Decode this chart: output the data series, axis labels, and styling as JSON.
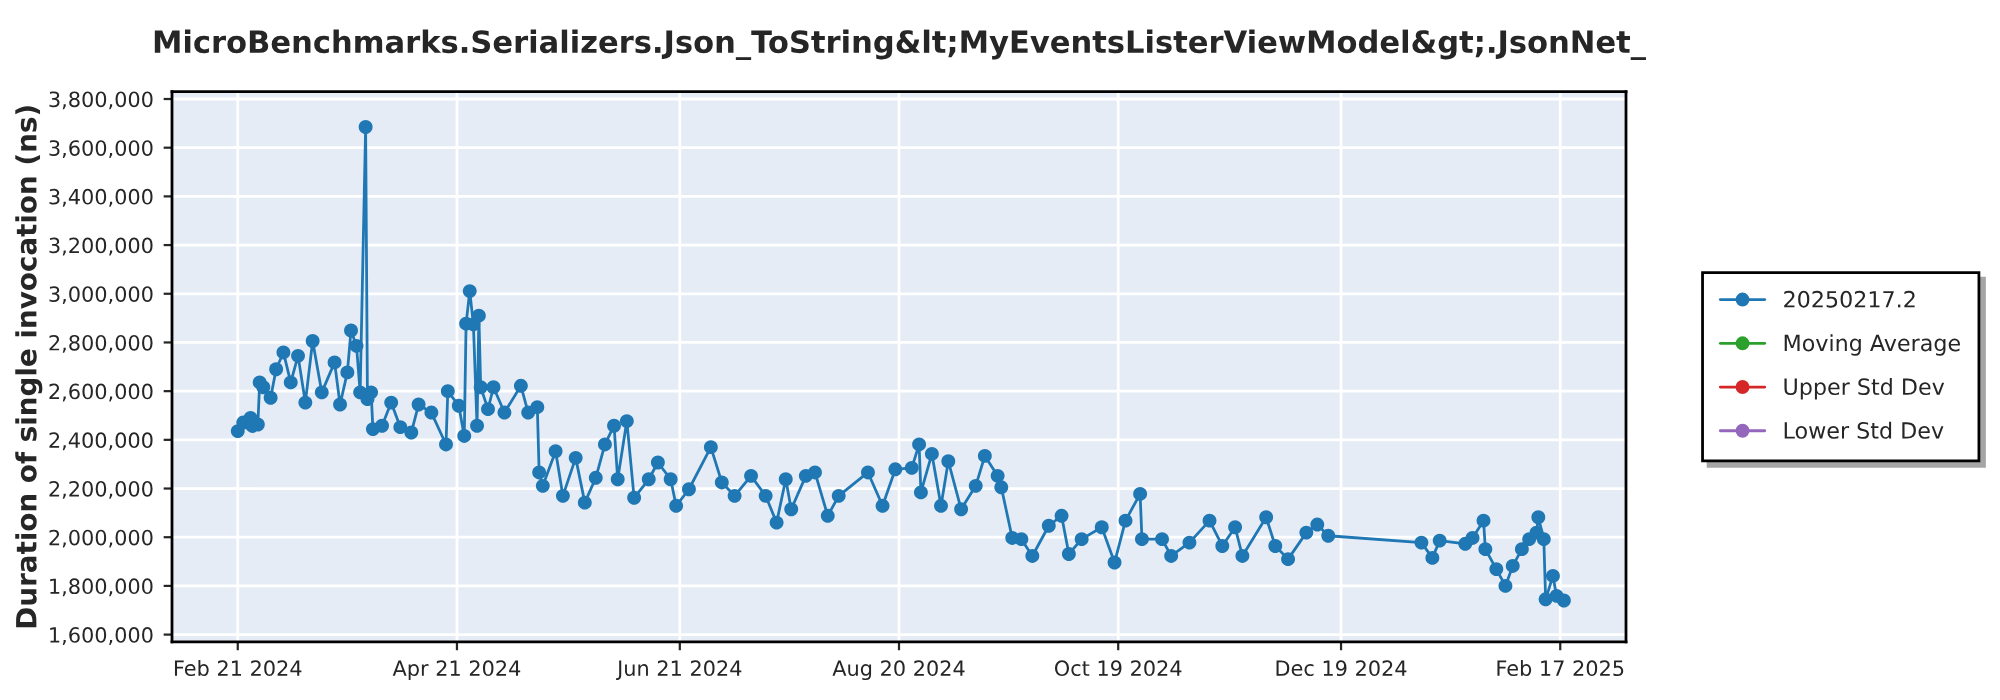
{
  "chart_data": {
    "type": "line",
    "title": "MicroBenchmarks.Serializers.Json_ToString&lt;MyEventsListerViewModel&gt;.JsonNet_",
    "ylabel": "Duration of single invocation (ns)",
    "xlim": [
      "2024-02-03",
      "2025-03-07"
    ],
    "xticks": [
      {
        "value": "2024-02-21",
        "label": "Feb 21 2024"
      },
      {
        "value": "2024-04-21",
        "label": "Apr 21 2024"
      },
      {
        "value": "2024-06-21",
        "label": "Jun 21 2024"
      },
      {
        "value": "2024-08-20",
        "label": "Aug 20 2024"
      },
      {
        "value": "2024-10-19",
        "label": "Oct 19 2024"
      },
      {
        "value": "2024-12-19",
        "label": "Dec 19 2024"
      },
      {
        "value": "2025-02-17",
        "label": "Feb 17 2025"
      }
    ],
    "ylim": [
      1570000,
      3830000
    ],
    "yticks": [
      {
        "value": 1600000,
        "label": "1,600,000"
      },
      {
        "value": 1800000,
        "label": "1,800,000"
      },
      {
        "value": 2000000,
        "label": "2,000,000"
      },
      {
        "value": 2200000,
        "label": "2,200,000"
      },
      {
        "value": 2400000,
        "label": "2,400,000"
      },
      {
        "value": 2600000,
        "label": "2,600,000"
      },
      {
        "value": 2800000,
        "label": "2,800,000"
      },
      {
        "value": 3000000,
        "label": "3,000,000"
      },
      {
        "value": 3200000,
        "label": "3,200,000"
      },
      {
        "value": 3400000,
        "label": "3,400,000"
      },
      {
        "value": 3600000,
        "label": "3,600,000"
      },
      {
        "value": 3800000,
        "label": "3,800,000"
      }
    ],
    "grid": true,
    "legend": "right",
    "marker": "circle",
    "line_style": "solid",
    "series": [
      {
        "name": "20250217.2",
        "color": "#1f77b4",
        "x": [
          "2024-02-21",
          "2024-02-22T12:00",
          "2024-02-24T12:00",
          "2024-02-25",
          "2024-02-26T12:00",
          "2024-02-27",
          "2024-02-28",
          "2024-03-01",
          "2024-03-02T12:00",
          "2024-03-04T12:00",
          "2024-03-06T12:00",
          "2024-03-08T12:00",
          "2024-03-10T12:00",
          "2024-03-12T12:00",
          "2024-03-15",
          "2024-03-18T12:00",
          "2024-03-20",
          "2024-03-22",
          "2024-03-23",
          "2024-03-24T12:00",
          "2024-03-25T12:00",
          "2024-03-27",
          "2024-03-27T12:00",
          "2024-03-28T12:00",
          "2024-03-29",
          "2024-03-31T12:00",
          "2024-04-03",
          "2024-04-05T12:00",
          "2024-04-08T12:00",
          "2024-04-10T12:00",
          "2024-04-14",
          "2024-04-18",
          "2024-04-18T12:00",
          "2024-04-21T12:00",
          "2024-04-23",
          "2024-04-23T12:00",
          "2024-04-24T12:00",
          "2024-04-25T12:00",
          "2024-04-26T12:00",
          "2024-04-27",
          "2024-04-27T12:00",
          "2024-04-29T12:00",
          "2024-05-01",
          "2024-05-04",
          "2024-05-08T12:00",
          "2024-05-10T12:00",
          "2024-05-13",
          "2024-05-13T12:00",
          "2024-05-14T12:00",
          "2024-05-18",
          "2024-05-20",
          "2024-05-23T12:00",
          "2024-05-26",
          "2024-05-29",
          "2024-05-31T12:00",
          "2024-06-03",
          "2024-06-04",
          "2024-06-06T12:00",
          "2024-06-08T12:00",
          "2024-06-12T12:00",
          "2024-06-15",
          "2024-06-18T12:00",
          "2024-06-20",
          "2024-06-23T12:00",
          "2024-06-29T12:00",
          "2024-07-02T12:00",
          "2024-07-06",
          "2024-07-10T12:00",
          "2024-07-14T12:00",
          "2024-07-17T12:00",
          "2024-07-20",
          "2024-07-21T12:00",
          "2024-07-25T12:00",
          "2024-07-28",
          "2024-07-31T12:00",
          "2024-08-03T12:00",
          "2024-08-11T12:00",
          "2024-08-15T12:00",
          "2024-08-19",
          "2024-08-23T12:00",
          "2024-08-25T12:00",
          "2024-08-26",
          "2024-08-29",
          "2024-08-31T12:00",
          "2024-09-02T12:00",
          "2024-09-06",
          "2024-09-10",
          "2024-09-12T12:00",
          "2024-09-16",
          "2024-09-17",
          "2024-09-20",
          "2024-09-22T12:00",
          "2024-09-25T12:00",
          "2024-09-30",
          "2024-10-03T12:00",
          "2024-10-05T12:00",
          "2024-10-09",
          "2024-10-14T12:00",
          "2024-10-18",
          "2024-10-21",
          "2024-10-25",
          "2024-10-25T12:00",
          "2024-10-31",
          "2024-11-02T12:00",
          "2024-11-07T12:00",
          "2024-11-13",
          "2024-11-16T12:00",
          "2024-11-20",
          "2024-11-22",
          "2024-11-28T12:00",
          "2024-12-01",
          "2024-12-04T12:00",
          "2024-12-09T12:00",
          "2024-12-12T12:00",
          "2024-12-15T12:00",
          "2025-01-10",
          "2025-01-13",
          "2025-01-15",
          "2025-01-22",
          "2025-01-24",
          "2025-01-27",
          "2025-01-27T12:00",
          "2025-01-30T12:00",
          "2025-02-02",
          "2025-02-04",
          "2025-02-06T12:00",
          "2025-02-08T12:00",
          "2025-02-10T12:00",
          "2025-02-11",
          "2025-02-12T12:00",
          "2025-02-13",
          "2025-02-15",
          "2025-02-16",
          "2025-02-18"
        ],
        "values": [
          2436000,
          2471000,
          2490000,
          2457000,
          2463000,
          2636000,
          2616000,
          2573000,
          2690000,
          2759000,
          2636000,
          2745000,
          2553000,
          2806000,
          2595000,
          2718000,
          2545000,
          2677000,
          2849000,
          2786000,
          2595000,
          3685000,
          2567000,
          2595000,
          2444000,
          2458000,
          2553000,
          2452000,
          2430000,
          2545000,
          2512000,
          2381000,
          2600000,
          2540000,
          2416000,
          2877000,
          3011000,
          2874000,
          2458000,
          2910000,
          2616000,
          2526000,
          2616000,
          2512000,
          2622000,
          2512000,
          2534000,
          2266000,
          2211000,
          2353000,
          2170000,
          2326000,
          2142000,
          2244000,
          2381000,
          2458000,
          2238000,
          2477000,
          2162000,
          2238000,
          2307000,
          2238000,
          2129000,
          2197000,
          2370000,
          2225000,
          2170000,
          2252000,
          2170000,
          2060000,
          2238000,
          2115000,
          2252000,
          2266000,
          2088000,
          2170000,
          2266000,
          2129000,
          2279000,
          2285000,
          2381000,
          2184000,
          2342000,
          2129000,
          2312000,
          2115000,
          2211000,
          2334000,
          2252000,
          2205000,
          1997000,
          1992000,
          1923000,
          2047000,
          2088000,
          1931000,
          1992000,
          2041000,
          1896000,
          2068000,
          2178000,
          1992000,
          1992000,
          1923000,
          1978000,
          2068000,
          1964000,
          2041000,
          1923000,
          2082000,
          1964000,
          1910000,
          2019000,
          2052000,
          2006000,
          1978000,
          1915000,
          1986000,
          1973000,
          1997000,
          2068000,
          1951000,
          1869000,
          1800000,
          1882000,
          1951000,
          1992000,
          2019000,
          2082000,
          1992000,
          1745000,
          1841000,
          1759000,
          1740000
        ]
      },
      {
        "name": "Moving Average",
        "color": "#2ca02c"
      },
      {
        "name": "Upper Std Dev",
        "color": "#d62728"
      },
      {
        "name": "Lower Std Dev",
        "color": "#9467bd"
      }
    ]
  }
}
